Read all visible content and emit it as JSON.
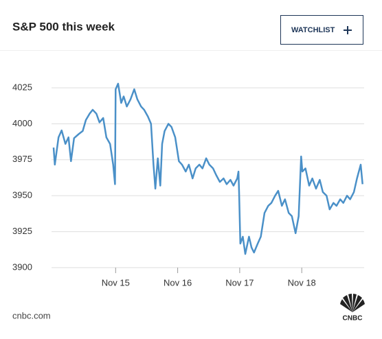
{
  "chart_data": {
    "type": "line",
    "title": "S&P 500 this week",
    "button": "WATCHLIST",
    "source": "cnbc.com",
    "logo_text": "CNBC",
    "x": [
      0,
      0.02,
      0.08,
      0.13,
      0.19,
      0.24,
      0.28,
      0.33,
      0.41,
      0.47,
      0.52,
      0.58,
      0.63,
      0.69,
      0.74,
      0.8,
      0.85,
      0.91,
      0.96,
      0.99,
      1.0,
      1.04,
      1.09,
      1.13,
      1.18,
      1.24,
      1.3,
      1.35,
      1.41,
      1.46,
      1.52,
      1.57,
      1.61,
      1.64,
      1.68,
      1.72,
      1.75,
      1.79,
      1.85,
      1.9,
      1.96,
      2.02,
      2.07,
      2.13,
      2.18,
      2.24,
      2.29,
      2.35,
      2.4,
      2.46,
      2.51,
      2.57,
      2.62,
      2.68,
      2.74,
      2.79,
      2.85,
      2.9,
      2.96,
      2.98,
      2.99,
      3.01,
      3.05,
      3.09,
      3.15,
      3.19,
      3.23,
      3.29,
      3.34,
      3.4,
      3.46,
      3.51,
      3.57,
      3.62,
      3.68,
      3.73,
      3.79,
      3.84,
      3.9,
      3.95,
      3.99,
      4.01,
      4.06,
      4.12,
      4.17,
      4.23,
      4.29,
      4.34,
      4.4,
      4.45,
      4.51,
      4.56,
      4.62,
      4.67,
      4.73,
      4.78,
      4.84,
      4.89,
      4.95,
      4.98
    ],
    "series": [
      {
        "name": "S&P 500",
        "color": "#4a90c8",
        "values": [
          3983.5,
          3971.6,
          3990.6,
          3995.4,
          3986,
          3990.6,
          3974,
          3990,
          3993,
          3995,
          4002.6,
          4007,
          4009.7,
          4007,
          4001,
          4004,
          3990.6,
          3986,
          3971.6,
          3958,
          4024,
          4027.9,
          4014.5,
          4019,
          4012,
          4017,
          4024,
          4017,
          4012,
          4009.7,
          4005,
          4000,
          3971.6,
          3954.9,
          3976,
          3957,
          3986,
          3995,
          4000,
          3997.8,
          3990.6,
          3974,
          3971.6,
          3966.8,
          3971.6,
          3962,
          3969,
          3971.6,
          3969,
          3976,
          3971.6,
          3969,
          3964.4,
          3959.6,
          3962,
          3958,
          3961,
          3957,
          3962,
          3966.8,
          3952.5,
          3916.7,
          3921.5,
          3909.5,
          3921.5,
          3914,
          3910.5,
          3916.7,
          3921.5,
          3938,
          3943,
          3945,
          3950,
          3953.4,
          3943,
          3947.5,
          3938,
          3935.8,
          3923.9,
          3935.8,
          3977.3,
          3966.8,
          3969,
          3957,
          3962,
          3954.9,
          3961,
          3952.5,
          3950,
          3940.5,
          3945,
          3943,
          3947.5,
          3945,
          3950,
          3947.5,
          3952.5,
          3962,
          3971.6,
          3958
        ]
      }
    ],
    "xlim": [
      0,
      5
    ],
    "xticks": [
      {
        "value": 1,
        "label": "Nov 15"
      },
      {
        "value": 2,
        "label": "Nov 16"
      },
      {
        "value": 3,
        "label": "Nov 17"
      },
      {
        "value": 4,
        "label": "Nov 18"
      }
    ],
    "ylim": [
      3900,
      4035
    ],
    "yticks": [
      3900,
      3925,
      3950,
      3975,
      4000,
      4025
    ],
    "grid": true
  }
}
